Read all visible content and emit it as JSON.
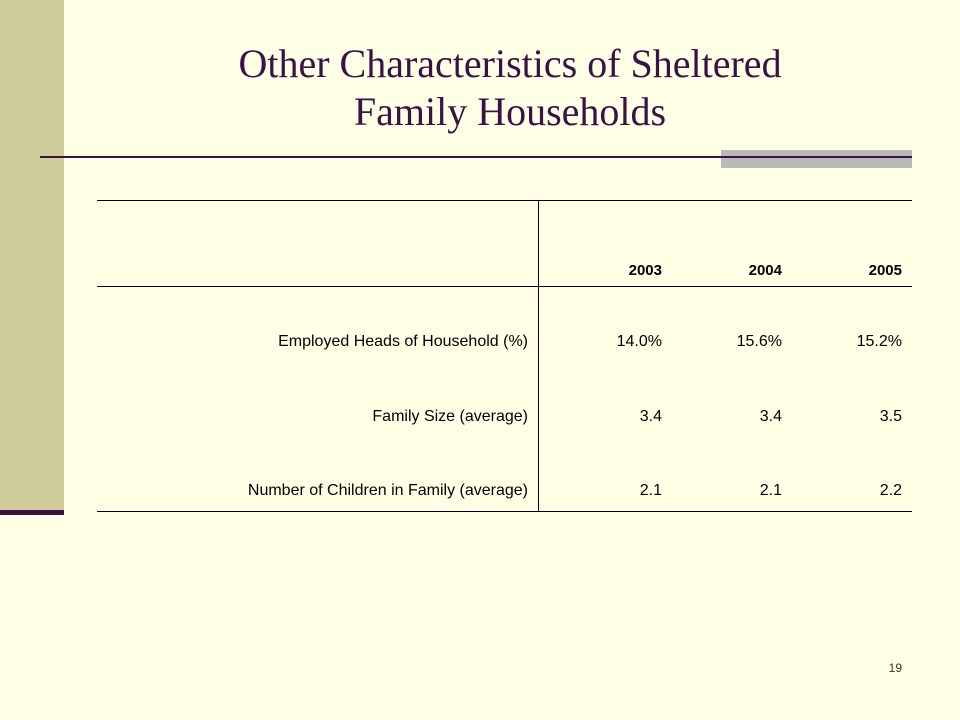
{
  "slide": {
    "title_line1": "Other Characteristics of Sheltered",
    "title_line2": "Family Households",
    "page_number": "19"
  },
  "table": {
    "columns": [
      "2003",
      "2004",
      "2005"
    ],
    "rows": [
      {
        "label": "Employed Heads of Household (%)",
        "values": [
          "14.0%",
          "15.6%",
          "15.2%"
        ]
      },
      {
        "label": "Family Size (average)",
        "values": [
          "3.4",
          "3.4",
          "3.5"
        ]
      },
      {
        "label": "Number of Children in Family (average)",
        "values": [
          "2.1",
          "2.1",
          "2.2"
        ]
      }
    ]
  }
}
